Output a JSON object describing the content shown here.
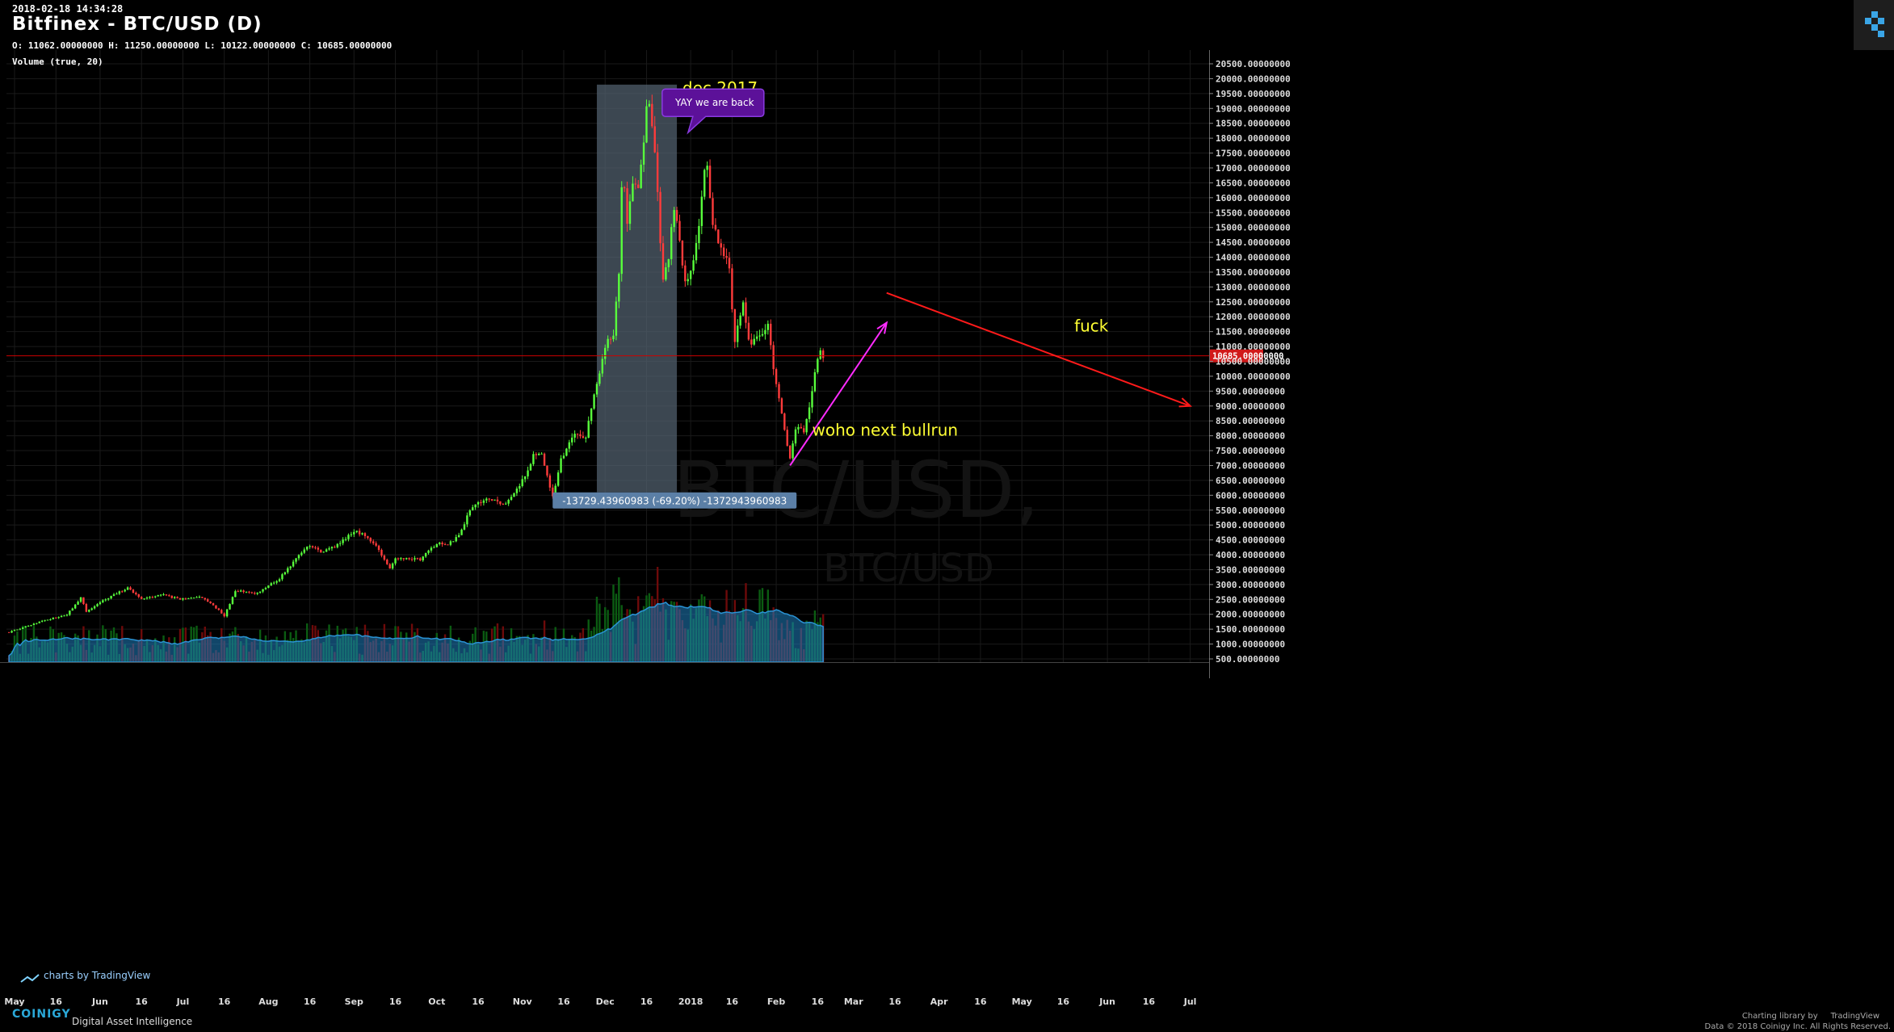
{
  "header": {
    "timestamp": "2018-02-18 14:34:28",
    "title": "Bitfinex - BTC/USD (D)",
    "ohlc": "O: 11062.00000000 H: 11250.00000000 L: 10122.00000000 C: 10685.00000000",
    "volume_indicator": "Volume (true, 20)"
  },
  "watermark": {
    "main": "BTC/USD,",
    "sub": "BTC/USD"
  },
  "footer": {
    "brand": "COINIGY",
    "tagline": "Digital Asset Intelligence",
    "tv_badge": "charts by TradingView",
    "charting_label": "Charting library by",
    "tv_name": "TradingView",
    "data_credit": "Data © 2018",
    "copyright": "Coinigy Inc. All Rights Reserved."
  },
  "colors": {
    "up": "#58ff3c",
    "down": "#ff3b3b",
    "vol_up": "#0b5c12",
    "vol_down": "#6e0a0a",
    "vol_ma_fill": "#1f7fbf",
    "grid": "#1a1a1a",
    "box": "#566574",
    "annotation_text": "#ffff33",
    "arrow_up": "#ff2bff",
    "arrow_down": "#ff1a1a",
    "callout_bg": "#5c1199",
    "price_line": "#cc0000"
  },
  "chart_data": {
    "type": "candlestick",
    "title": "Bitfinex - BTC/USD (D)",
    "ylim": [
      0,
      20800
    ],
    "y_ticks": [
      500,
      1000,
      1500,
      2000,
      2500,
      3000,
      3500,
      4000,
      4500,
      5000,
      5500,
      6000,
      6500,
      7000,
      7500,
      8000,
      8500,
      9000,
      9500,
      10000,
      10500,
      11000,
      11500,
      12000,
      12500,
      13000,
      13500,
      14000,
      14500,
      15000,
      15500,
      16000,
      16500,
      17000,
      17500,
      18000,
      18500,
      19000,
      19500,
      20000,
      20500
    ],
    "y_tick_labels": [
      "500.00000000",
      "1000.00000000",
      "1500.00000000",
      "2000.00000000",
      "2500.00000000",
      "3000.00000000",
      "3500.00000000",
      "4000.00000000",
      "4500.00000000",
      "5000.00000000",
      "5500.00000000",
      "6000.00000000",
      "6500.00000000",
      "7000.00000000",
      "7500.00000000",
      "8000.00000000",
      "8500.00000000",
      "9000.00000000",
      "9500.00000000",
      "10000.00000000",
      "10500.00000000",
      "11000.00000000",
      "11500.00000000",
      "12000.00000000",
      "12500.00000000",
      "13000.00000000",
      "13500.00000000",
      "14000.00000000",
      "14500.00000000",
      "15000.00000000",
      "15500.00000000",
      "16000.00000000",
      "16500.00000000",
      "17000.00000000",
      "17500.00000000",
      "18000.00000000",
      "18500.00000000",
      "19000.00000000",
      "19500.00000000",
      "20000.00000000",
      "20500.00000000"
    ],
    "x_ticks": [
      {
        "date": "2017-05-01",
        "label": "May"
      },
      {
        "date": "2017-05-16",
        "label": "16"
      },
      {
        "date": "2017-06-01",
        "label": "Jun"
      },
      {
        "date": "2017-06-16",
        "label": "16"
      },
      {
        "date": "2017-07-01",
        "label": "Jul"
      },
      {
        "date": "2017-07-16",
        "label": "16"
      },
      {
        "date": "2017-08-01",
        "label": "Aug"
      },
      {
        "date": "2017-08-16",
        "label": "16"
      },
      {
        "date": "2017-09-01",
        "label": "Sep"
      },
      {
        "date": "2017-09-16",
        "label": "16"
      },
      {
        "date": "2017-10-01",
        "label": "Oct"
      },
      {
        "date": "2017-10-16",
        "label": "16"
      },
      {
        "date": "2017-11-01",
        "label": "Nov"
      },
      {
        "date": "2017-11-16",
        "label": "16"
      },
      {
        "date": "2017-12-01",
        "label": "Dec"
      },
      {
        "date": "2017-12-16",
        "label": "16"
      },
      {
        "date": "2018-01-01",
        "label": "2018"
      },
      {
        "date": "2018-01-16",
        "label": "16"
      },
      {
        "date": "2018-02-01",
        "label": "Feb"
      },
      {
        "date": "2018-02-16",
        "label": "16"
      },
      {
        "date": "2018-03-01",
        "label": "Mar"
      },
      {
        "date": "2018-03-16",
        "label": "16"
      },
      {
        "date": "2018-04-01",
        "label": "Apr"
      },
      {
        "date": "2018-04-16",
        "label": "16"
      },
      {
        "date": "2018-05-01",
        "label": "May"
      },
      {
        "date": "2018-05-16",
        "label": "16"
      },
      {
        "date": "2018-06-01",
        "label": "Jun"
      },
      {
        "date": "2018-06-16",
        "label": "16"
      },
      {
        "date": "2018-07-01",
        "label": "Jul"
      }
    ],
    "close_path": [
      [
        "2017-04-29",
        1400
      ],
      [
        "2017-05-10",
        1750
      ],
      [
        "2017-05-20",
        2000
      ],
      [
        "2017-05-25",
        2550
      ],
      [
        "2017-05-27",
        2100
      ],
      [
        "2017-06-01",
        2400
      ],
      [
        "2017-06-11",
        2900
      ],
      [
        "2017-06-16",
        2500
      ],
      [
        "2017-06-24",
        2650
      ],
      [
        "2017-06-30",
        2500
      ],
      [
        "2017-07-06",
        2600
      ],
      [
        "2017-07-11",
        2400
      ],
      [
        "2017-07-16",
        1950
      ],
      [
        "2017-07-20",
        2800
      ],
      [
        "2017-07-28",
        2700
      ],
      [
        "2017-08-05",
        3200
      ],
      [
        "2017-08-13",
        4100
      ],
      [
        "2017-08-16",
        4300
      ],
      [
        "2017-08-20",
        4100
      ],
      [
        "2017-08-25",
        4250
      ],
      [
        "2017-09-01",
        4800
      ],
      [
        "2017-09-06",
        4600
      ],
      [
        "2017-09-09",
        4300
      ],
      [
        "2017-09-14",
        3500
      ],
      [
        "2017-09-16",
        3900
      ],
      [
        "2017-09-20",
        3850
      ],
      [
        "2017-09-25",
        3850
      ],
      [
        "2017-10-01",
        4400
      ],
      [
        "2017-10-05",
        4300
      ],
      [
        "2017-10-10",
        4800
      ],
      [
        "2017-10-13",
        5500
      ],
      [
        "2017-10-16",
        5700
      ],
      [
        "2017-10-20",
        5900
      ],
      [
        "2017-10-26",
        5700
      ],
      [
        "2017-11-01",
        6500
      ],
      [
        "2017-11-05",
        7300
      ],
      [
        "2017-11-08",
        7400
      ],
      [
        "2017-11-12",
        5900
      ],
      [
        "2017-11-15",
        7200
      ],
      [
        "2017-11-20",
        8100
      ],
      [
        "2017-11-24",
        8000
      ],
      [
        "2017-11-26",
        9000
      ],
      [
        "2017-11-29",
        10000
      ],
      [
        "2017-12-01",
        11000
      ],
      [
        "2017-12-04",
        11500
      ],
      [
        "2017-12-06",
        13500
      ],
      [
        "2017-12-07",
        16200
      ],
      [
        "2017-12-08",
        16500
      ],
      [
        "2017-12-09",
        15000
      ],
      [
        "2017-12-11",
        16600
      ],
      [
        "2017-12-13",
        16200
      ],
      [
        "2017-12-15",
        17700
      ],
      [
        "2017-12-16",
        19100
      ],
      [
        "2017-12-17",
        19000
      ],
      [
        "2017-12-19",
        17500
      ],
      [
        "2017-12-20",
        16000
      ],
      [
        "2017-12-22",
        13300
      ],
      [
        "2017-12-24",
        14000
      ],
      [
        "2017-12-26",
        15700
      ],
      [
        "2017-12-28",
        14500
      ],
      [
        "2017-12-30",
        13100
      ],
      [
        "2018-01-01",
        13500
      ],
      [
        "2018-01-04",
        15000
      ],
      [
        "2018-01-06",
        16900
      ],
      [
        "2018-01-07",
        17100
      ],
      [
        "2018-01-09",
        15000
      ],
      [
        "2018-01-12",
        14300
      ],
      [
        "2018-01-15",
        13600
      ],
      [
        "2018-01-17",
        11200
      ],
      [
        "2018-01-20",
        12500
      ],
      [
        "2018-01-22",
        11200
      ],
      [
        "2018-01-25",
        11200
      ],
      [
        "2018-01-29",
        11800
      ],
      [
        "2018-01-31",
        10200
      ],
      [
        "2018-02-02",
        9200
      ],
      [
        "2018-02-05",
        7600
      ],
      [
        "2018-02-06",
        7300
      ],
      [
        "2018-02-08",
        8300
      ],
      [
        "2018-02-11",
        8200
      ],
      [
        "2018-02-13",
        8900
      ],
      [
        "2018-02-15",
        10100
      ],
      [
        "2018-02-17",
        11000
      ],
      [
        "2018-02-18",
        10685
      ]
    ],
    "last_price": 10685,
    "last_price_label": "10685.00000000",
    "volume_indicator": "Volume (true, 20)",
    "annotations": [
      {
        "type": "box",
        "from": "2017-11-28",
        "to": "2017-12-27",
        "low": 6100,
        "high": 19800
      },
      {
        "type": "text",
        "text": "dec 2017",
        "date": "2017-12-29",
        "price": 19500
      },
      {
        "type": "callout",
        "text": "YAY we are back",
        "date": "2018-01-05",
        "price": 17400
      },
      {
        "type": "measure",
        "text": "-13729.43960983 (-69.20%) -1372943960983",
        "date": "2017-12-13",
        "price": 5800
      },
      {
        "type": "arrow",
        "color": "magenta",
        "from": [
          "2018-02-06",
          7000
        ],
        "to": [
          "2018-03-13",
          11800
        ]
      },
      {
        "type": "text",
        "text": "woho next bullrun",
        "date": "2018-02-14",
        "price": 8000
      },
      {
        "type": "arrow",
        "color": "red",
        "from": [
          "2018-03-13",
          12800
        ],
        "to": [
          "2018-07-01",
          9000
        ]
      },
      {
        "type": "text",
        "text": "fuck",
        "date": "2018-05-20",
        "price": 11500
      }
    ]
  }
}
